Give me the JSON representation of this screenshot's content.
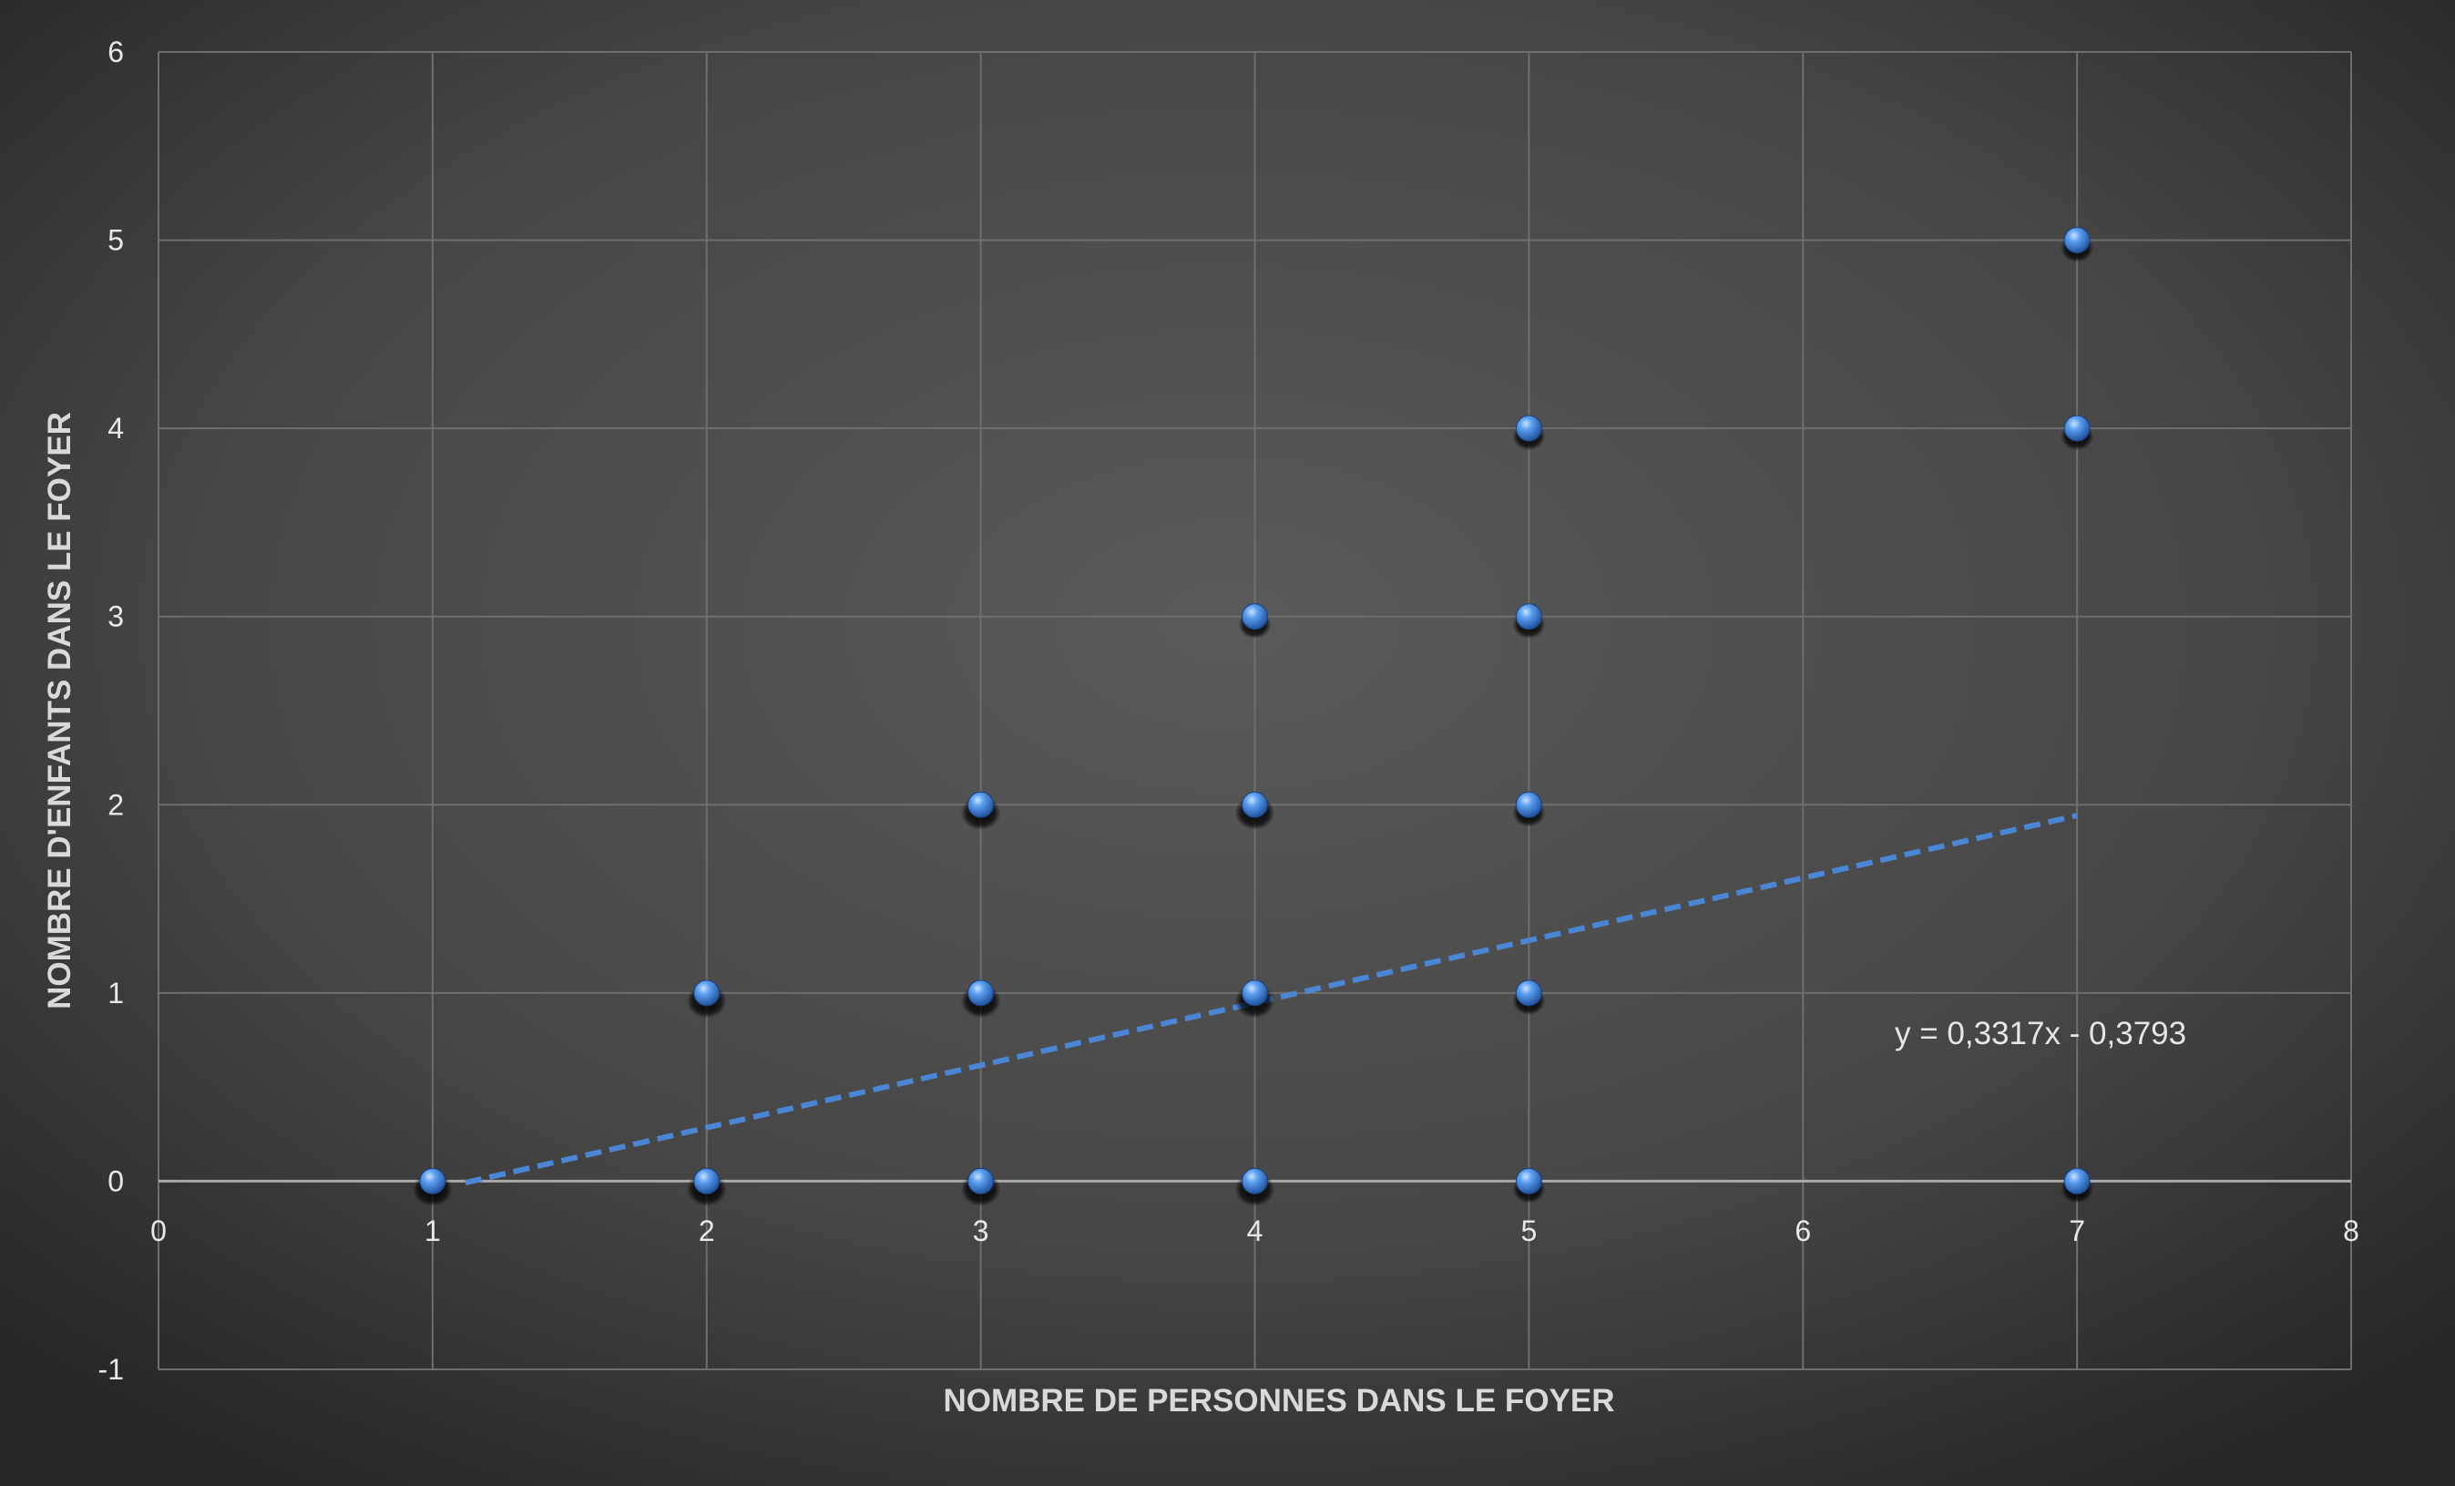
{
  "chart_data": {
    "type": "scatter",
    "title": "",
    "xlabel": "NOMBRE DE PERSONNES DANS LE FOYER",
    "ylabel": "NOMBRE D'ENFANTS DANS LE FOYER",
    "xlim": [
      0,
      8
    ],
    "ylim": [
      -1,
      6
    ],
    "xticks": [
      "0",
      "1",
      "2",
      "3",
      "4",
      "5",
      "6",
      "7",
      "8"
    ],
    "yticks": [
      "-1",
      "0",
      "1",
      "2",
      "3",
      "4",
      "5",
      "6"
    ],
    "grid": true,
    "legend": "none",
    "series": [
      {
        "points": [
          {
            "x": 1,
            "y": 0
          },
          {
            "x": 2,
            "y": 0
          },
          {
            "x": 2,
            "y": 1
          },
          {
            "x": 3,
            "y": 0
          },
          {
            "x": 3,
            "y": 1
          },
          {
            "x": 3,
            "y": 2
          },
          {
            "x": 4,
            "y": 0
          },
          {
            "x": 4,
            "y": 1
          },
          {
            "x": 4,
            "y": 2
          },
          {
            "x": 4,
            "y": 3
          },
          {
            "x": 5,
            "y": 0
          },
          {
            "x": 5,
            "y": 1
          },
          {
            "x": 5,
            "y": 2
          },
          {
            "x": 5,
            "y": 3
          },
          {
            "x": 5,
            "y": 4
          },
          {
            "x": 7,
            "y": 0
          },
          {
            "x": 7,
            "y": 4
          },
          {
            "x": 7,
            "y": 5
          }
        ],
        "color": "#4a8fe0"
      }
    ],
    "trendline": {
      "slope": 0.3317,
      "intercept": -0.3793,
      "x_range": [
        1,
        7
      ],
      "equation": "y = 0,3317x - 0,3793",
      "color": "#4a86d4",
      "style": "dashed"
    }
  }
}
